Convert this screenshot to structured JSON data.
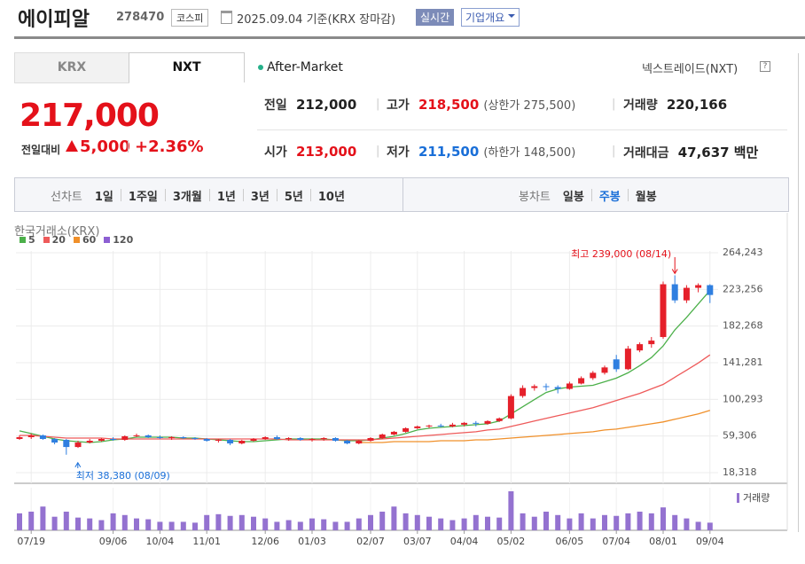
{
  "header": {
    "name": "에이피알",
    "code": "278470",
    "market": "코스피",
    "date": "2025.09.04 기준(KRX 장마감)",
    "realtime": "실시간",
    "overview": "기업개요"
  },
  "tabs": [
    "KRX",
    "NXT"
  ],
  "after_market": "After-Market",
  "nxt_link": "넥스트레이드(NXT)",
  "quote": {
    "price": "217,000",
    "change_label": "전일대비",
    "change": "5,000",
    "percent": "+2.36%",
    "stats": [
      [
        {
          "label": "전일",
          "value": "212,000"
        },
        {
          "label": "고가",
          "value": "218,500",
          "note": "(상한가 275,500)"
        },
        {
          "label": "거래량",
          "value": "220,166"
        }
      ],
      [
        {
          "label": "시가",
          "value": "213,000"
        },
        {
          "label": "저가",
          "value": "211,500",
          "note": "(하한가 148,500)"
        },
        {
          "label": "거래대금",
          "value": "47,637",
          "unit": "백만"
        }
      ]
    ]
  },
  "periods": {
    "line_label": "선차트",
    "line": [
      "1일",
      "1주일",
      "3개월",
      "1년",
      "3년",
      "5년",
      "10년"
    ],
    "candle_label": "봉차트",
    "candle": [
      "일봉",
      "주봉",
      "월봉"
    ],
    "candle_active": 1
  },
  "chart_data": {
    "type": "candlestick",
    "source": "한국거래소(KRX)",
    "categories": [
      null,
      "07/19",
      null,
      null,
      null,
      null,
      null,
      null,
      "09/06",
      null,
      null,
      null,
      "10/04",
      null,
      null,
      null,
      "11/01",
      null,
      null,
      null,
      null,
      "12/06",
      null,
      null,
      null,
      "01/03",
      null,
      null,
      null,
      null,
      "02/07",
      null,
      null,
      null,
      "03/07",
      null,
      null,
      null,
      "04/04",
      null,
      null,
      null,
      "05/02",
      null,
      null,
      null,
      null,
      "06/05",
      null,
      null,
      null,
      "07/04",
      null,
      null,
      null,
      "08/01",
      null,
      null,
      null,
      "09/04"
    ],
    "open": [
      56000,
      58000,
      60000,
      56000,
      55000,
      47000,
      52000,
      54000,
      56000,
      55000,
      59000,
      60000,
      58000,
      57000,
      58000,
      57000,
      56000,
      54000,
      55000,
      51000,
      54000,
      56000,
      58000,
      56000,
      57000,
      55000,
      56000,
      57000,
      54000,
      51000,
      54000,
      57000,
      61000,
      64000,
      68000,
      70000,
      71000,
      70000,
      72000,
      74000,
      73000,
      76000,
      79000,
      104000,
      113000,
      115000,
      114000,
      112000,
      118000,
      124000,
      130000,
      145000,
      134000,
      155000,
      162000,
      170000,
      229000,
      211000,
      225000,
      228000
    ],
    "high": [
      60000,
      62000,
      61000,
      57000,
      56000,
      54000,
      56000,
      57000,
      58000,
      60000,
      62000,
      61000,
      60000,
      59000,
      59000,
      58000,
      57000,
      56000,
      56000,
      55000,
      57000,
      59000,
      60000,
      58000,
      58000,
      57000,
      58000,
      58000,
      55000,
      55000,
      58000,
      62000,
      65000,
      69000,
      71000,
      72000,
      73000,
      74000,
      75000,
      76000,
      77000,
      80000,
      106000,
      116000,
      117000,
      118000,
      116000,
      120000,
      126000,
      132000,
      138000,
      150000,
      160000,
      164000,
      170000,
      232000,
      239000,
      228000,
      230000,
      229000
    ],
    "low": [
      55000,
      56000,
      55000,
      50000,
      38380,
      46000,
      51000,
      53000,
      54000,
      54000,
      58000,
      57000,
      56000,
      55000,
      56000,
      55000,
      53000,
      52000,
      49000,
      50000,
      53000,
      55000,
      55000,
      54000,
      54000,
      53000,
      54000,
      53000,
      50000,
      50000,
      53000,
      56000,
      60000,
      63000,
      67000,
      68000,
      69000,
      69000,
      70000,
      70000,
      72000,
      75000,
      78000,
      102000,
      110000,
      110000,
      107000,
      111000,
      117000,
      122000,
      128000,
      131000,
      133000,
      153000,
      158000,
      168000,
      208000,
      208000,
      220000,
      208000
    ],
    "close": [
      58000,
      60000,
      56000,
      52000,
      47000,
      52000,
      54000,
      56000,
      55000,
      59000,
      60000,
      58000,
      57000,
      58000,
      57000,
      56000,
      54000,
      55000,
      51000,
      54000,
      56000,
      58000,
      56000,
      57000,
      55000,
      56000,
      57000,
      54000,
      51000,
      54000,
      57000,
      61000,
      64000,
      68000,
      70000,
      71000,
      70000,
      72000,
      74000,
      73000,
      76000,
      79000,
      104000,
      113000,
      115000,
      114000,
      112000,
      118000,
      124000,
      130000,
      136000,
      134000,
      157000,
      162000,
      166000,
      229000,
      211000,
      225000,
      228000,
      217000
    ],
    "up_color": "#e5202a",
    "down_color": "#2f7fe0",
    "moving_averages": [
      {
        "name": "5",
        "color": "#4cb04a",
        "values": [
          65000,
          62000,
          59000,
          56000,
          54000,
          53000,
          52000,
          53000,
          55000,
          56000,
          58000,
          58000,
          58000,
          58000,
          57000,
          57000,
          56000,
          55000,
          54000,
          53000,
          53000,
          54000,
          55000,
          56000,
          56000,
          56000,
          56000,
          55000,
          54000,
          54000,
          55000,
          57000,
          59000,
          62000,
          66000,
          68000,
          69000,
          70000,
          71000,
          72000,
          73000,
          76000,
          84000,
          92000,
          100000,
          108000,
          112000,
          114000,
          115000,
          116000,
          120000,
          124000,
          130000,
          138000,
          147000,
          160000,
          178000,
          192000,
          207000,
          222000
        ]
      },
      {
        "name": "20",
        "color": "#ee5a5a",
        "values": [
          60000,
          60000,
          59000,
          58000,
          57000,
          57000,
          57000,
          57000,
          56000,
          56000,
          56000,
          56000,
          56000,
          56000,
          56000,
          56000,
          56000,
          56000,
          56000,
          56000,
          56000,
          56000,
          56000,
          55000,
          55000,
          55000,
          55000,
          55000,
          55000,
          55000,
          55000,
          56000,
          57000,
          58000,
          59000,
          60000,
          61000,
          62000,
          63000,
          64000,
          66000,
          67000,
          70000,
          73000,
          76000,
          79000,
          82000,
          85000,
          88000,
          91000,
          95000,
          99000,
          103000,
          107000,
          112000,
          117000,
          125000,
          133000,
          141000,
          150000
        ]
      },
      {
        "name": "60",
        "color": "#f0902a",
        "values": [
          null,
          null,
          null,
          null,
          null,
          null,
          null,
          null,
          null,
          null,
          null,
          null,
          null,
          null,
          null,
          null,
          null,
          null,
          null,
          null,
          null,
          null,
          null,
          null,
          null,
          null,
          null,
          null,
          null,
          52000,
          52000,
          52000,
          53000,
          53000,
          53000,
          53000,
          54000,
          54000,
          54000,
          55000,
          55000,
          56000,
          57000,
          58000,
          59000,
          60000,
          61000,
          62000,
          63000,
          64000,
          66000,
          67000,
          69000,
          71000,
          73000,
          75000,
          78000,
          81000,
          84000,
          88000
        ]
      },
      {
        "name": "120",
        "color": "#8d5fd3",
        "values": [
          null,
          null,
          null,
          null,
          null,
          null,
          null,
          null,
          null,
          null,
          null,
          null,
          null,
          null,
          null,
          null,
          null,
          null,
          null,
          null,
          null,
          null,
          null,
          null,
          null,
          null,
          null,
          null,
          null,
          null,
          null,
          null,
          null,
          null,
          null,
          null,
          null,
          null,
          null,
          null,
          null,
          null,
          null,
          null,
          null,
          null,
          null,
          null,
          null,
          null,
          null,
          null,
          null,
          null,
          null,
          null,
          null,
          null,
          null,
          null
        ]
      }
    ],
    "volume_label": "거래량",
    "volume_color": "#9472d0",
    "volume": [
      500000,
      550000,
      700000,
      400000,
      550000,
      375000,
      350000,
      300000,
      500000,
      450000,
      350000,
      325000,
      250000,
      250000,
      250000,
      225000,
      450000,
      475000,
      425000,
      450000,
      400000,
      350000,
      250000,
      300000,
      250000,
      350000,
      325000,
      250000,
      250000,
      350000,
      450000,
      550000,
      700000,
      500000,
      450000,
      400000,
      350000,
      300000,
      350000,
      450000,
      400000,
      375000,
      1150000,
      500000,
      400000,
      550000,
      450000,
      350000,
      500000,
      350000,
      450000,
      425000,
      500000,
      550000,
      500000,
      675000,
      450000,
      350000,
      250000,
      225000
    ],
    "ylim": [
      6419,
      266226
    ],
    "yticks": [
      {
        "value": 264243,
        "label": "264,243"
      },
      {
        "value": 223256,
        "label": "223,256"
      },
      {
        "value": 182268,
        "label": "182,268"
      },
      {
        "value": 141281,
        "label": "141,281"
      },
      {
        "value": 100293,
        "label": "100,293"
      },
      {
        "value": 59306,
        "label": "59,306"
      },
      {
        "value": 18318,
        "label": "18,318"
      }
    ],
    "grid": true,
    "max_label": "최고 239,000 (08/14)",
    "min_label": "최저 38,380 (08/09)"
  }
}
